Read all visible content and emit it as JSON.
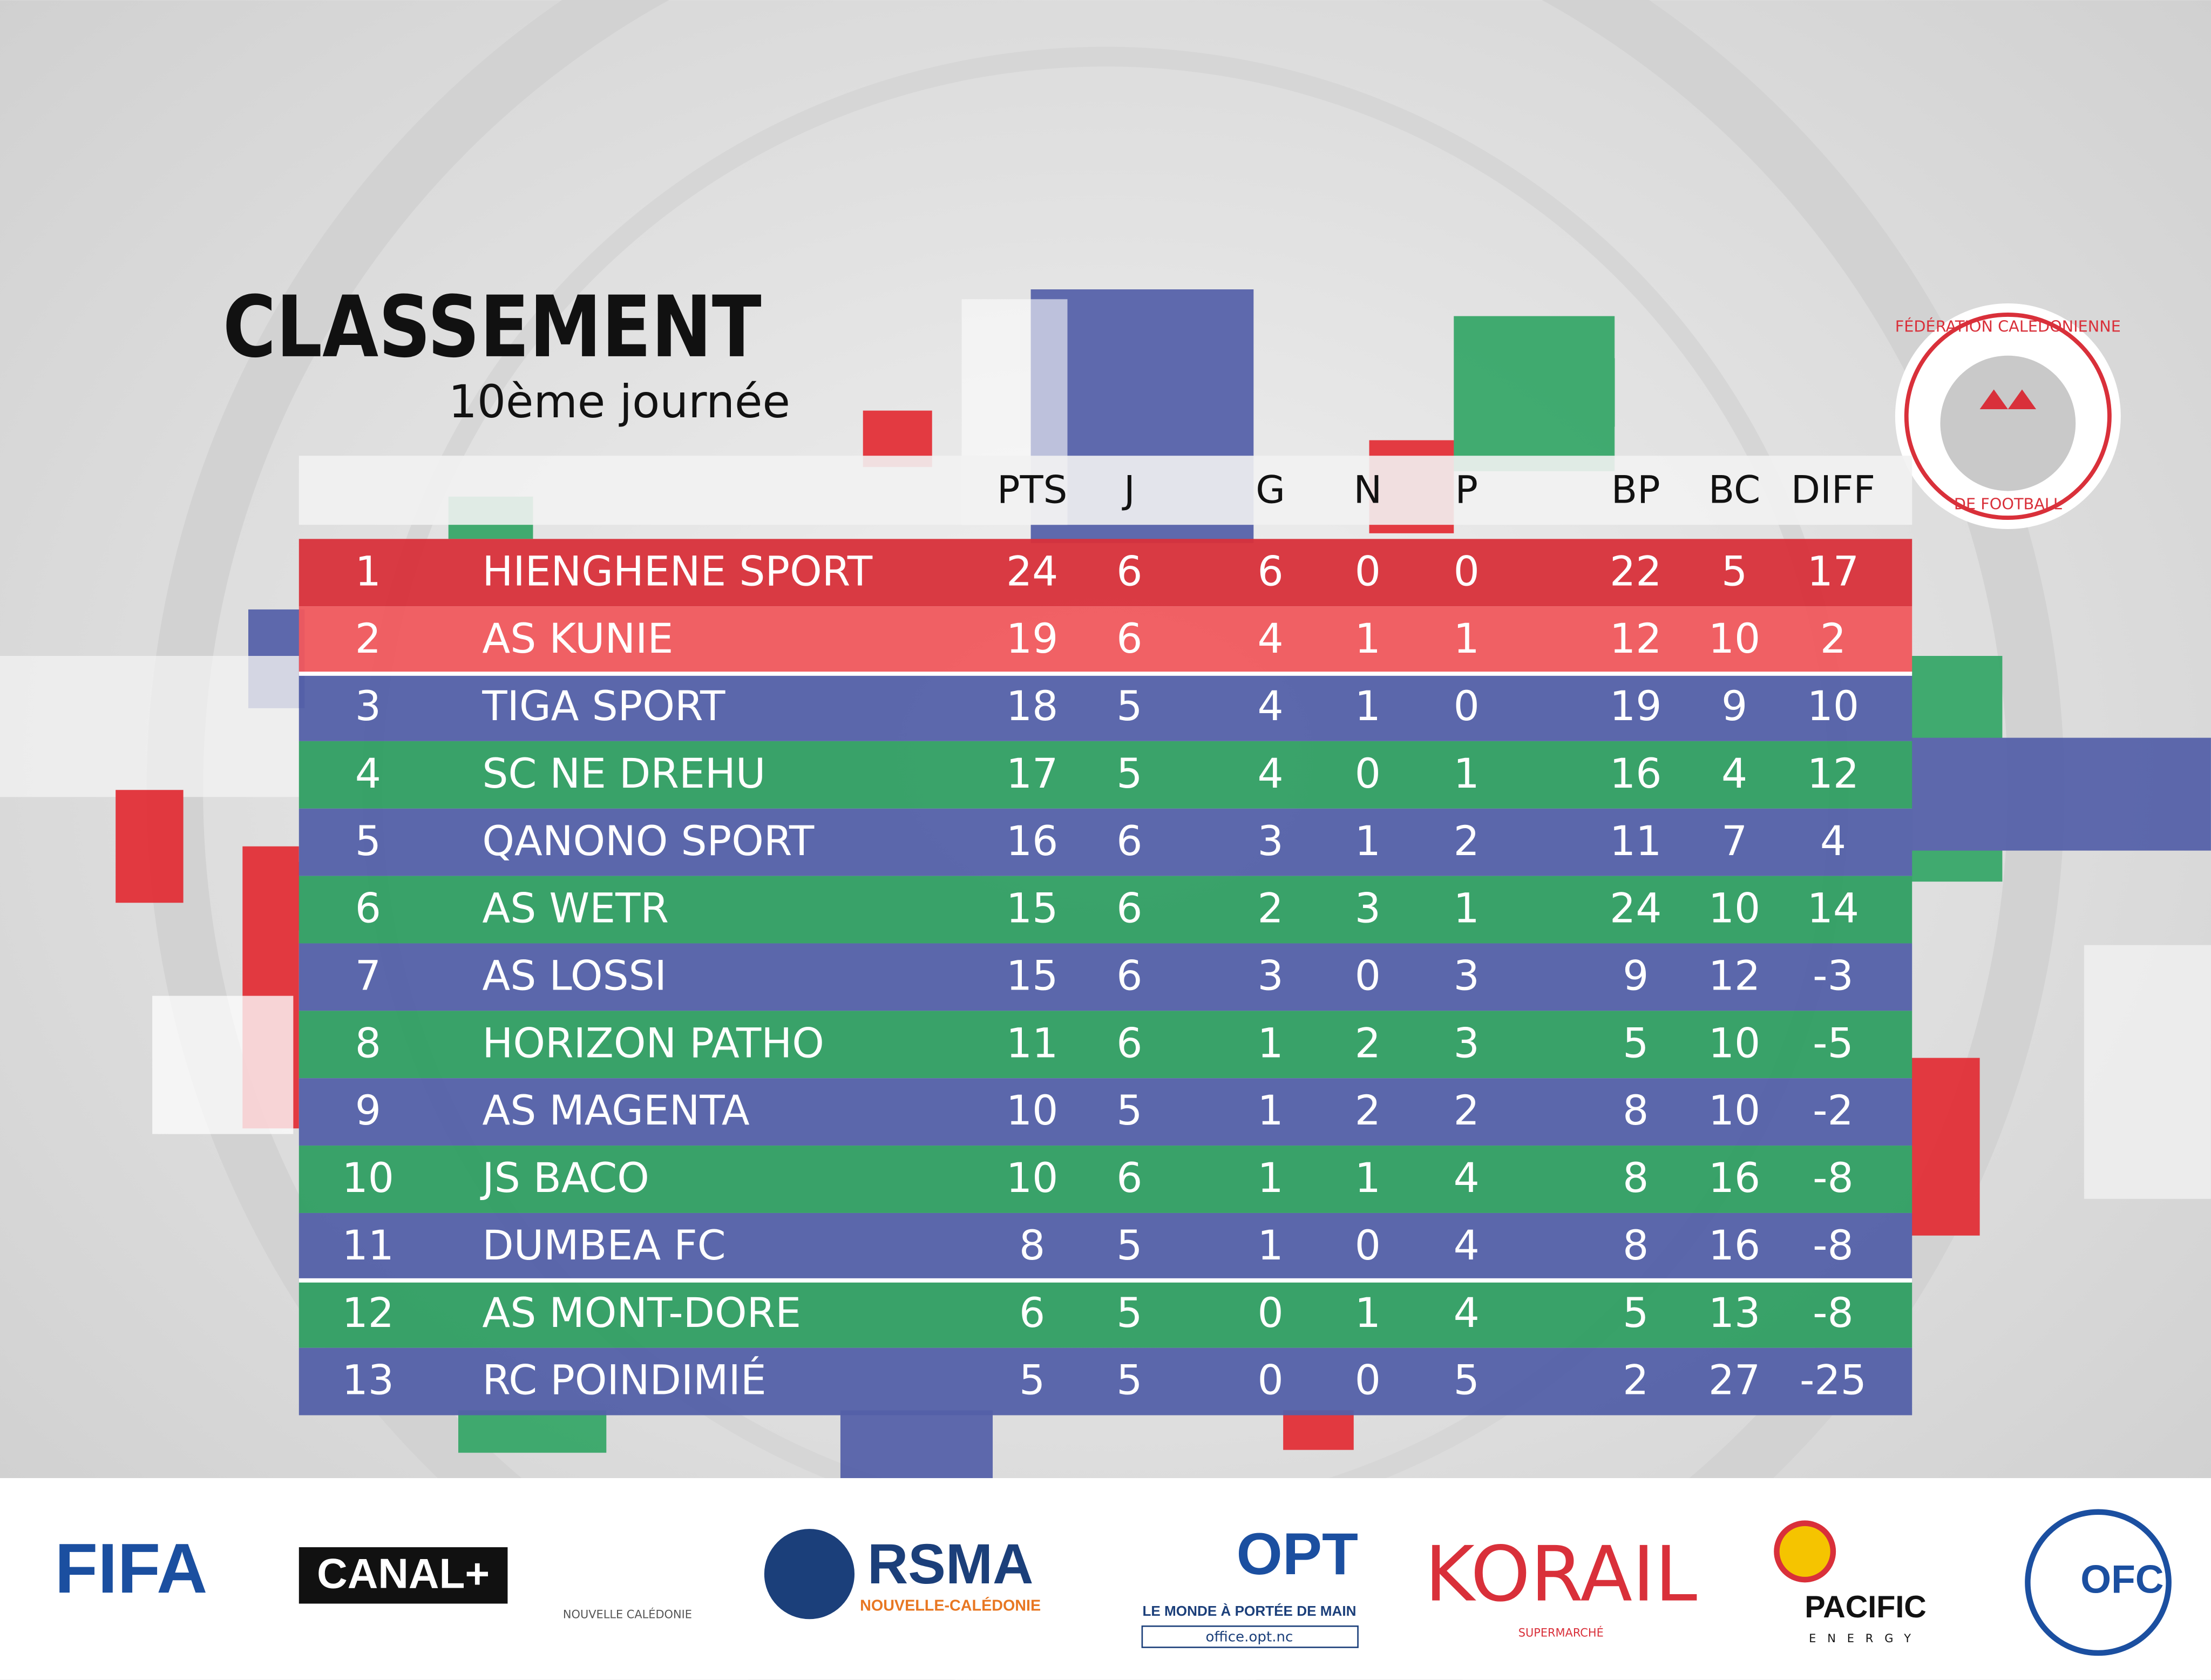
{
  "title": "CLASSEMENT",
  "subtitle": "10ème journée",
  "logo": {
    "top": "FÉDÉRATION CALÉDONIENNE",
    "bottom": "DE FOOTBALL"
  },
  "table": {
    "header": [
      "PTS",
      "J",
      "G",
      "N",
      "P",
      "BP",
      "BC",
      "DIFF"
    ],
    "rows": [
      [
        1,
        "HIENGHENE SPORT",
        24,
        6,
        6,
        0,
        0,
        22,
        5,
        17
      ],
      [
        2,
        "AS KUNIE",
        19,
        6,
        4,
        1,
        1,
        12,
        10,
        2
      ],
      [
        3,
        "TIGA SPORT",
        18,
        5,
        4,
        1,
        0,
        19,
        9,
        10
      ],
      [
        4,
        "SC NE DREHU",
        17,
        5,
        4,
        0,
        1,
        16,
        4,
        12
      ],
      [
        5,
        "QANONO SPORT",
        16,
        6,
        3,
        1,
        2,
        11,
        7,
        4
      ],
      [
        6,
        "AS WETR",
        15,
        6,
        2,
        3,
        1,
        24,
        10,
        14
      ],
      [
        7,
        "AS LOSSI",
        15,
        6,
        3,
        0,
        3,
        9,
        12,
        -3
      ],
      [
        8,
        "HORIZON PATHO",
        11,
        6,
        1,
        2,
        3,
        5,
        10,
        -5
      ],
      [
        9,
        "AS MAGENTA",
        10,
        5,
        1,
        2,
        2,
        8,
        10,
        -2
      ],
      [
        10,
        "JS BACO",
        10,
        6,
        1,
        1,
        4,
        8,
        16,
        -8
      ],
      [
        11,
        "DUMBEA FC",
        8,
        5,
        1,
        0,
        4,
        8,
        16,
        -8
      ],
      [
        12,
        "AS MONT-DORE",
        6,
        5,
        0,
        1,
        4,
        5,
        13,
        -8
      ],
      [
        13,
        "RC POINDIMIÉ",
        5,
        5,
        0,
        0,
        5,
        2,
        27,
        -25
      ]
    ]
  },
  "sponsors": [
    "FIFA",
    "CANAL+",
    "NOUVELLE CALÉDONIE",
    "RSMA",
    "NOUVELLE-CALÉDONIE",
    "OPT",
    "LE MONDE À PORTÉE DE MAIN",
    "office.opt.nc",
    "KORAIL",
    "SUPERMARCHÉ",
    "PACIFIC",
    "ENERGY",
    "OFC"
  ]
}
